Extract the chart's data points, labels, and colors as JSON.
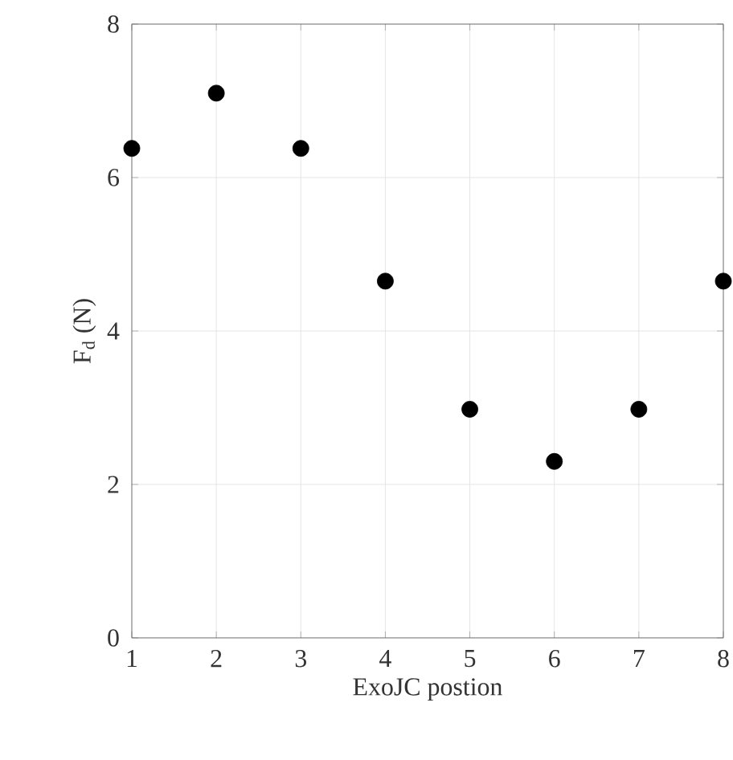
{
  "chart_data": {
    "type": "scatter",
    "xlabel": "ExoJC postion",
    "ylabel": "F$_{d}$ (N)",
    "x": [
      1,
      2,
      3,
      4,
      5,
      6,
      7,
      8
    ],
    "values": [
      6.38,
      7.1,
      6.38,
      4.65,
      2.98,
      2.3,
      2.98,
      4.65
    ],
    "color": "#000000",
    "marker": "circle",
    "xlim": [
      1,
      8
    ],
    "xticks": [
      1,
      2,
      3,
      4,
      5,
      6,
      7,
      8
    ],
    "ylim": [
      0,
      8
    ],
    "yticks": [
      0,
      2,
      4,
      6,
      8
    ],
    "grid": true
  }
}
